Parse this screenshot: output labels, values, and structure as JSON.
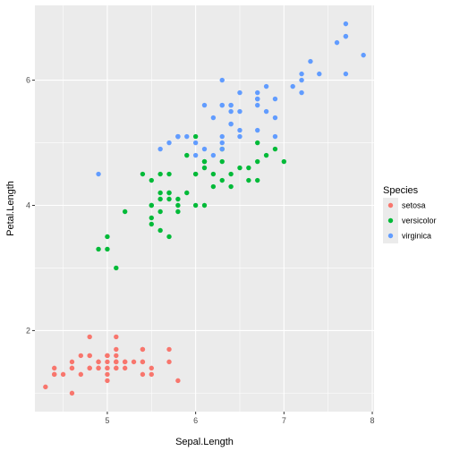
{
  "chart_data": {
    "type": "scatter",
    "xlabel": "Sepal.Length",
    "ylabel": "Petal.Length",
    "xlim": [
      4.18,
      8.02
    ],
    "ylim": [
      0.705,
      7.195
    ],
    "x_ticks": [
      5,
      6,
      7,
      8
    ],
    "y_ticks": [
      2,
      4,
      6
    ],
    "grid": true,
    "legend_position": "right",
    "legend": {
      "title": "Species",
      "entries": [
        "setosa",
        "versicolor",
        "virginica"
      ]
    },
    "colors": {
      "setosa": "#F8766D",
      "versicolor": "#00BA38",
      "virginica": "#619CFF",
      "panel": "#EBEBEB",
      "grid": "#FFFFFF"
    },
    "series": [
      {
        "name": "setosa",
        "x": [
          5.1,
          4.9,
          4.7,
          4.6,
          5.0,
          5.4,
          4.6,
          5.0,
          4.4,
          4.9,
          5.4,
          4.8,
          4.8,
          4.3,
          5.8,
          5.7,
          5.4,
          5.1,
          5.7,
          5.1,
          5.4,
          5.1,
          4.6,
          5.1,
          4.8,
          5.0,
          5.0,
          5.2,
          5.2,
          4.7,
          4.8,
          5.4,
          5.2,
          5.5,
          4.9,
          5.0,
          5.5,
          4.9,
          4.4,
          5.1,
          5.0,
          4.5,
          4.4,
          5.0,
          5.1,
          4.8,
          5.1,
          4.6,
          5.3,
          5.0
        ],
        "y": [
          1.4,
          1.4,
          1.3,
          1.5,
          1.4,
          1.7,
          1.4,
          1.5,
          1.4,
          1.5,
          1.5,
          1.6,
          1.4,
          1.1,
          1.2,
          1.5,
          1.3,
          1.4,
          1.7,
          1.5,
          1.7,
          1.5,
          1.0,
          1.7,
          1.9,
          1.6,
          1.6,
          1.5,
          1.4,
          1.6,
          1.6,
          1.5,
          1.5,
          1.4,
          1.5,
          1.2,
          1.3,
          1.4,
          1.3,
          1.5,
          1.3,
          1.3,
          1.3,
          1.6,
          1.9,
          1.4,
          1.6,
          1.4,
          1.5,
          1.4
        ]
      },
      {
        "name": "versicolor",
        "x": [
          7.0,
          6.4,
          6.9,
          5.5,
          6.5,
          5.7,
          6.3,
          4.9,
          6.6,
          5.2,
          5.0,
          5.9,
          6.0,
          6.1,
          5.6,
          6.7,
          5.6,
          5.8,
          6.2,
          5.6,
          5.9,
          6.1,
          6.3,
          6.1,
          6.4,
          6.6,
          6.8,
          6.7,
          6.0,
          5.7,
          5.5,
          5.5,
          5.8,
          6.0,
          5.4,
          6.0,
          6.7,
          6.3,
          5.6,
          5.5,
          5.5,
          6.1,
          5.8,
          5.0,
          5.6,
          5.7,
          5.7,
          6.2,
          5.1,
          5.7
        ],
        "y": [
          4.7,
          4.5,
          4.9,
          4.0,
          4.6,
          4.5,
          4.7,
          3.3,
          4.6,
          3.9,
          3.5,
          4.2,
          4.0,
          4.7,
          3.6,
          4.4,
          4.5,
          4.1,
          4.5,
          3.9,
          4.8,
          4.0,
          4.9,
          4.7,
          4.3,
          4.4,
          4.8,
          5.0,
          4.5,
          3.5,
          3.8,
          3.7,
          3.9,
          5.1,
          4.5,
          4.5,
          4.7,
          4.4,
          4.1,
          4.0,
          4.4,
          4.6,
          4.0,
          3.3,
          4.2,
          4.2,
          4.2,
          4.3,
          3.0,
          4.1
        ]
      },
      {
        "name": "virginica",
        "x": [
          6.3,
          5.8,
          7.1,
          6.3,
          6.5,
          7.6,
          4.9,
          7.3,
          6.7,
          7.2,
          6.5,
          6.4,
          6.8,
          5.7,
          5.8,
          6.4,
          6.5,
          7.7,
          7.7,
          6.0,
          6.9,
          5.6,
          7.7,
          6.3,
          6.7,
          7.2,
          6.2,
          6.1,
          6.4,
          7.2,
          7.4,
          7.9,
          6.4,
          6.3,
          6.1,
          7.7,
          6.3,
          6.4,
          6.0,
          6.9,
          6.7,
          6.9,
          5.8,
          6.8,
          6.7,
          6.7,
          6.3,
          6.5,
          6.2,
          5.9
        ],
        "y": [
          6.0,
          5.1,
          5.9,
          5.6,
          5.8,
          6.6,
          4.5,
          6.3,
          5.8,
          6.1,
          5.1,
          5.3,
          5.5,
          5.0,
          5.1,
          5.3,
          5.5,
          6.7,
          6.9,
          5.0,
          5.7,
          4.9,
          6.7,
          4.9,
          5.7,
          6.0,
          4.8,
          4.9,
          5.6,
          5.8,
          6.1,
          6.4,
          5.6,
          5.1,
          5.6,
          6.1,
          5.6,
          5.5,
          4.8,
          5.4,
          5.6,
          5.1,
          5.1,
          5.9,
          5.7,
          5.2,
          5.0,
          5.2,
          5.4,
          5.1
        ]
      }
    ]
  }
}
